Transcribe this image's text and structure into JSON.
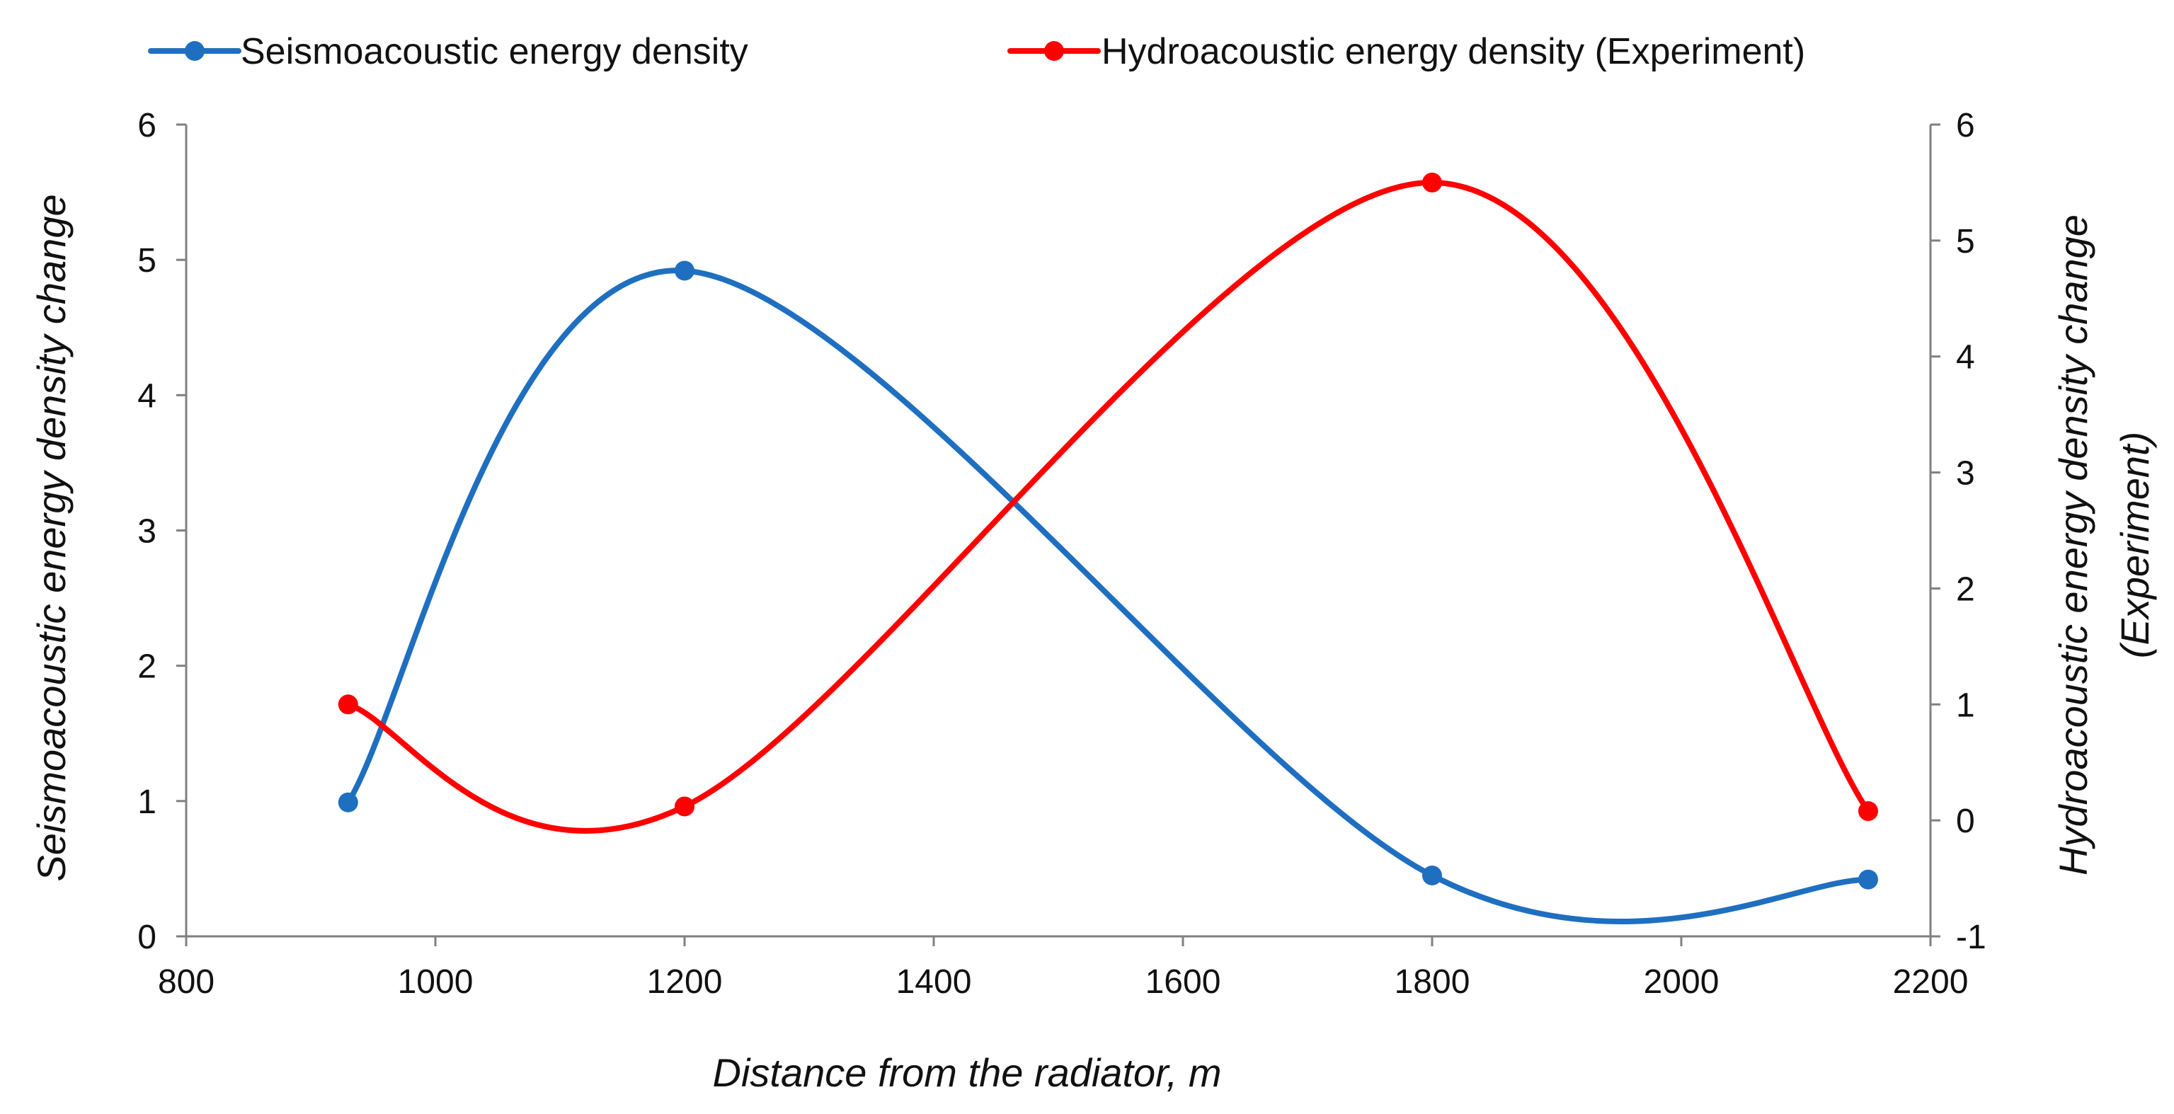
{
  "chart_data": {
    "type": "line",
    "smooth": true,
    "title": "",
    "xlabel": "Distance from the radiator, m",
    "ylabel_left": "Seismoacoustic energy density change",
    "ylabel_right_line1": "Hydroacoustic  energy density change",
    "ylabel_right_line2": "(Experiment)",
    "xlim": [
      800,
      2200
    ],
    "ylim_left": [
      0,
      6
    ],
    "ylim_right": [
      -1,
      6
    ],
    "x_ticks": [
      800,
      1000,
      1200,
      1400,
      1600,
      1800,
      2000,
      2200
    ],
    "y_left_ticks": [
      0,
      1,
      2,
      3,
      4,
      5,
      6
    ],
    "y_right_ticks": [
      -1,
      0,
      1,
      2,
      3,
      4,
      5,
      6
    ],
    "grid": false,
    "legend_position": "top",
    "series": [
      {
        "name": "Seismoacoustic energy density",
        "axis": "left",
        "color": "#1f6fc0",
        "x": [
          930,
          1200,
          1800,
          2150
        ],
        "values": [
          0.99,
          4.92,
          0.45,
          0.42
        ]
      },
      {
        "name": "Hydroacoustic energy density (Experiment)",
        "axis": "right",
        "color": "#ff0000",
        "x": [
          930,
          1200,
          1800,
          2150
        ],
        "values": [
          1.0,
          0.12,
          5.5,
          0.08
        ]
      }
    ]
  }
}
